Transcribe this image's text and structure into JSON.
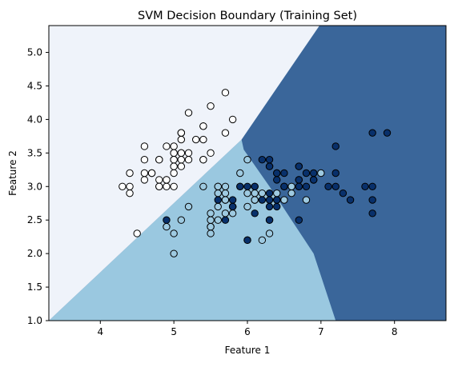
{
  "chart_data": {
    "type": "scatter",
    "title": "SVM Decision Boundary (Training Set)",
    "xlabel": "Feature 1",
    "ylabel": "Feature 2",
    "xlim": [
      3.3,
      8.7
    ],
    "ylim": [
      1.0,
      5.4
    ],
    "x_ticks": [
      "4",
      "5",
      "6",
      "7",
      "8"
    ],
    "y_ticks": [
      "1.0",
      "1.5",
      "2.0",
      "2.5",
      "3.0",
      "3.5",
      "4.0",
      "4.5",
      "5.0"
    ],
    "grid": false,
    "legend": "none",
    "colors": {
      "region_class_0": "#eff3fa",
      "region_class_1": "#9ac8e0",
      "region_class_2": "#3a669a",
      "point_class_0": "#ffffff",
      "point_class_1": "#9ecae1",
      "point_class_2": "#08306b",
      "point_edge": "#000000"
    },
    "decision_regions": {
      "class_0_boundary": [
        [
          3.3,
          1.0
        ],
        [
          5.92,
          3.7
        ],
        [
          6.98,
          5.4
        ]
      ],
      "class_1_boundary": [
        [
          5.92,
          3.7
        ],
        [
          5.95,
          3.55
        ],
        [
          6.3,
          3.0
        ],
        [
          6.6,
          2.5
        ],
        [
          6.9,
          2.0
        ],
        [
          7.2,
          1.0
        ]
      ]
    },
    "series": [
      {
        "class": 0,
        "points": [
          [
            5.1,
            3.5
          ],
          [
            4.9,
            3.0
          ],
          [
            4.7,
            3.2
          ],
          [
            4.6,
            3.1
          ],
          [
            5.0,
            3.6
          ],
          [
            5.4,
            3.9
          ],
          [
            4.6,
            3.4
          ],
          [
            5.0,
            3.4
          ],
          [
            4.4,
            2.9
          ],
          [
            4.9,
            3.1
          ],
          [
            5.4,
            3.7
          ],
          [
            4.8,
            3.4
          ],
          [
            4.8,
            3.0
          ],
          [
            4.3,
            3.0
          ],
          [
            5.8,
            4.0
          ],
          [
            5.7,
            4.4
          ],
          [
            5.4,
            3.9
          ],
          [
            5.1,
            3.5
          ],
          [
            5.7,
            3.8
          ],
          [
            5.1,
            3.8
          ],
          [
            5.4,
            3.4
          ],
          [
            5.1,
            3.7
          ],
          [
            4.6,
            3.6
          ],
          [
            5.1,
            3.3
          ],
          [
            4.8,
            3.4
          ],
          [
            5.0,
            3.0
          ],
          [
            5.0,
            3.4
          ],
          [
            5.2,
            3.5
          ],
          [
            5.2,
            3.4
          ],
          [
            4.7,
            3.2
          ],
          [
            4.8,
            3.1
          ],
          [
            5.4,
            3.4
          ],
          [
            5.2,
            4.1
          ],
          [
            5.5,
            4.2
          ],
          [
            4.9,
            3.1
          ],
          [
            5.0,
            3.2
          ],
          [
            5.5,
            3.5
          ],
          [
            4.9,
            3.6
          ],
          [
            4.4,
            3.0
          ],
          [
            5.1,
            3.4
          ],
          [
            5.0,
            3.5
          ],
          [
            4.5,
            2.3
          ],
          [
            4.4,
            3.2
          ],
          [
            5.0,
            3.5
          ],
          [
            5.1,
            3.8
          ],
          [
            4.8,
            3.0
          ],
          [
            5.1,
            3.8
          ],
          [
            4.6,
            3.2
          ],
          [
            5.3,
            3.7
          ],
          [
            5.0,
            3.3
          ]
        ]
      },
      {
        "class": 1,
        "points": [
          [
            7.0,
            3.2
          ],
          [
            6.4,
            3.2
          ],
          [
            6.9,
            3.1
          ],
          [
            5.5,
            2.3
          ],
          [
            6.5,
            2.8
          ],
          [
            5.7,
            2.8
          ],
          [
            6.3,
            3.3
          ],
          [
            4.9,
            2.4
          ],
          [
            6.6,
            2.9
          ],
          [
            5.2,
            2.7
          ],
          [
            5.0,
            2.0
          ],
          [
            5.9,
            3.0
          ],
          [
            6.0,
            2.2
          ],
          [
            6.1,
            2.9
          ],
          [
            5.6,
            2.9
          ],
          [
            6.7,
            3.1
          ],
          [
            5.6,
            3.0
          ],
          [
            5.8,
            2.7
          ],
          [
            6.2,
            2.2
          ],
          [
            5.6,
            2.5
          ],
          [
            5.9,
            3.2
          ],
          [
            6.1,
            2.8
          ],
          [
            6.3,
            2.5
          ],
          [
            6.1,
            2.8
          ],
          [
            6.4,
            2.9
          ],
          [
            6.6,
            3.0
          ],
          [
            6.8,
            2.8
          ],
          [
            6.7,
            3.0
          ],
          [
            6.0,
            2.9
          ],
          [
            5.7,
            2.6
          ],
          [
            5.5,
            2.4
          ],
          [
            5.5,
            2.4
          ],
          [
            5.8,
            2.7
          ],
          [
            6.0,
            2.7
          ],
          [
            5.4,
            3.0
          ],
          [
            6.0,
            3.4
          ],
          [
            6.7,
            3.1
          ],
          [
            6.3,
            2.3
          ],
          [
            5.6,
            3.0
          ],
          [
            5.5,
            2.5
          ],
          [
            5.5,
            2.6
          ],
          [
            6.1,
            3.0
          ],
          [
            5.8,
            2.6
          ],
          [
            5.0,
            2.3
          ],
          [
            5.6,
            2.7
          ],
          [
            5.7,
            3.0
          ],
          [
            5.7,
            2.9
          ],
          [
            6.2,
            2.9
          ],
          [
            5.1,
            2.5
          ],
          [
            5.7,
            2.8
          ]
        ]
      },
      {
        "class": 2,
        "points": [
          [
            6.3,
            3.3
          ],
          [
            5.8,
            2.7
          ],
          [
            7.1,
            3.0
          ],
          [
            6.3,
            2.9
          ],
          [
            6.5,
            3.0
          ],
          [
            7.6,
            3.0
          ],
          [
            4.9,
            2.5
          ],
          [
            7.3,
            2.9
          ],
          [
            6.7,
            2.5
          ],
          [
            7.2,
            3.6
          ],
          [
            6.5,
            3.2
          ],
          [
            6.4,
            2.7
          ],
          [
            6.8,
            3.0
          ],
          [
            5.7,
            2.5
          ],
          [
            5.8,
            2.8
          ],
          [
            6.4,
            3.2
          ],
          [
            6.5,
            3.0
          ],
          [
            7.7,
            3.8
          ],
          [
            7.7,
            2.6
          ],
          [
            6.0,
            2.2
          ],
          [
            6.9,
            3.2
          ],
          [
            5.6,
            2.8
          ],
          [
            7.7,
            2.8
          ],
          [
            6.3,
            2.7
          ],
          [
            6.7,
            3.3
          ],
          [
            7.2,
            3.2
          ],
          [
            6.2,
            2.8
          ],
          [
            6.1,
            3.0
          ],
          [
            6.4,
            2.8
          ],
          [
            7.2,
            3.0
          ],
          [
            7.4,
            2.8
          ],
          [
            7.9,
            3.8
          ],
          [
            6.4,
            2.8
          ],
          [
            6.3,
            2.8
          ],
          [
            6.1,
            2.6
          ],
          [
            7.7,
            3.0
          ],
          [
            6.3,
            3.4
          ],
          [
            6.4,
            3.1
          ],
          [
            6.0,
            3.0
          ],
          [
            6.9,
            3.1
          ],
          [
            6.7,
            3.1
          ],
          [
            6.9,
            3.1
          ],
          [
            5.8,
            2.7
          ],
          [
            6.8,
            3.2
          ],
          [
            6.7,
            3.3
          ],
          [
            6.7,
            3.0
          ],
          [
            6.3,
            2.5
          ],
          [
            6.5,
            3.0
          ],
          [
            6.2,
            3.4
          ],
          [
            5.9,
            3.0
          ]
        ]
      }
    ]
  }
}
